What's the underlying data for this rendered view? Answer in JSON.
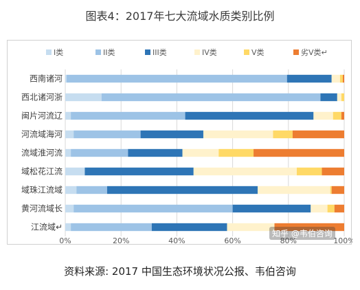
{
  "title": "图表4：2017年七大流域水质类别比例",
  "source": "资料来源: 2017 中国生态环境状况公报、韦伯咨询",
  "watermark": "知乎 @韦伯咨询",
  "chart_data": {
    "type": "bar",
    "orientation": "horizontal",
    "stacked": true,
    "normalized": true,
    "title": "图表4：2017年七大流域水质类别比例",
    "categories": [
      "西南诸河",
      "西北诸河浙",
      "闽片河流辽",
      "河流域海河",
      "流域淮河流",
      "域松花江流",
      "域珠江流域",
      "黄河流域长",
      "江流域↵"
    ],
    "series": [
      {
        "name": "I类",
        "color": "#c6ddf0",
        "values": [
          0.5,
          13,
          2,
          3,
          2,
          7,
          4,
          3,
          2
        ]
      },
      {
        "name": "II类",
        "color": "#9dc3e6",
        "values": [
          79,
          78.5,
          41,
          24,
          20.5,
          0,
          11,
          57,
          29
        ]
      },
      {
        "name": "III类",
        "color": "#2e75b6",
        "values": [
          16,
          6,
          46,
          22.5,
          19.5,
          39,
          54,
          28,
          27
        ]
      },
      {
        "name": "IV类",
        "color": "#fff2cc",
        "values": [
          3,
          1.5,
          7,
          25,
          13,
          37,
          26,
          6,
          17
        ]
      },
      {
        "name": "V类",
        "color": "#ffd966",
        "values": [
          1,
          1,
          3,
          7,
          12.5,
          9,
          0.5,
          2.5,
          0
        ]
      },
      {
        "name": "劣V类↵",
        "color": "#ed7d31",
        "values": [
          0.5,
          0,
          1,
          18.5,
          32.5,
          8,
          4.5,
          3.5,
          25
        ]
      }
    ],
    "xlim": [
      0,
      100
    ],
    "xticks": [
      "0%",
      "20%",
      "40%",
      "60%",
      "80%",
      "100%"
    ],
    "legend_position": "top",
    "grid": true
  }
}
